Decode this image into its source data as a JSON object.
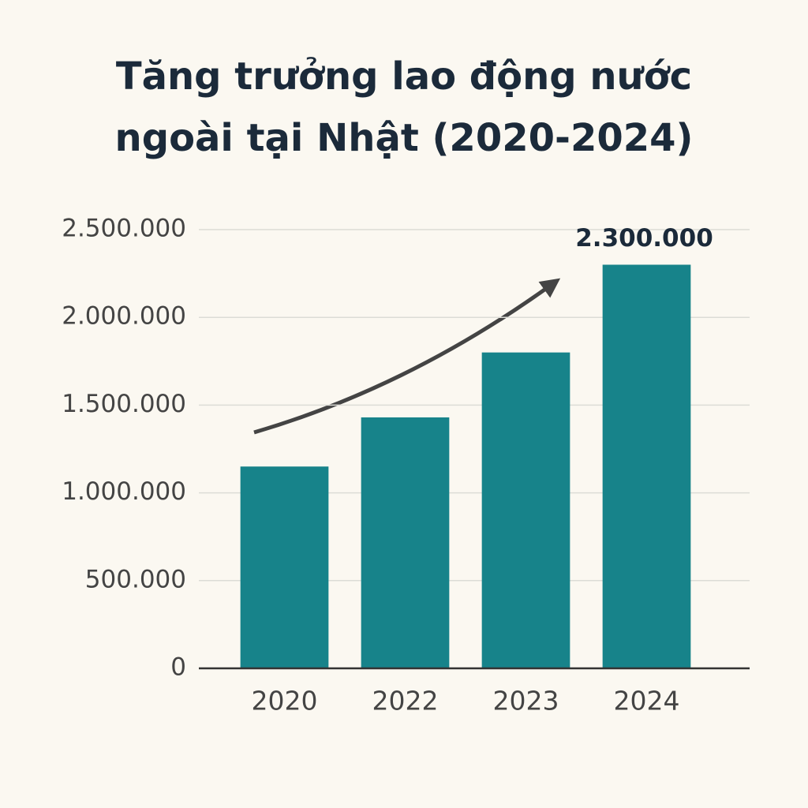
{
  "chart_data": {
    "type": "bar",
    "title": "Tăng trưởng lao động nước ngoài tại Nhật (2020-2024)",
    "categories": [
      "2020",
      "2022",
      "2023",
      "2024"
    ],
    "values": [
      1150000,
      1430000,
      1800000,
      2300000
    ],
    "value_labels": [
      null,
      null,
      null,
      "2.300.000"
    ],
    "color": "#17838a",
    "ylim": [
      0,
      2500000
    ],
    "yticks": [
      0,
      {
        "value": 500000,
        "label": "500.000"
      },
      {
        "value": 1000000,
        "label": "1.000.000"
      },
      {
        "value": 1500000,
        "label": "1.500.000"
      },
      {
        "value": 2000000,
        "label": "2.000.000"
      },
      {
        "value": 2500000,
        "label": "2.500.000"
      }
    ],
    "grid": true
  }
}
